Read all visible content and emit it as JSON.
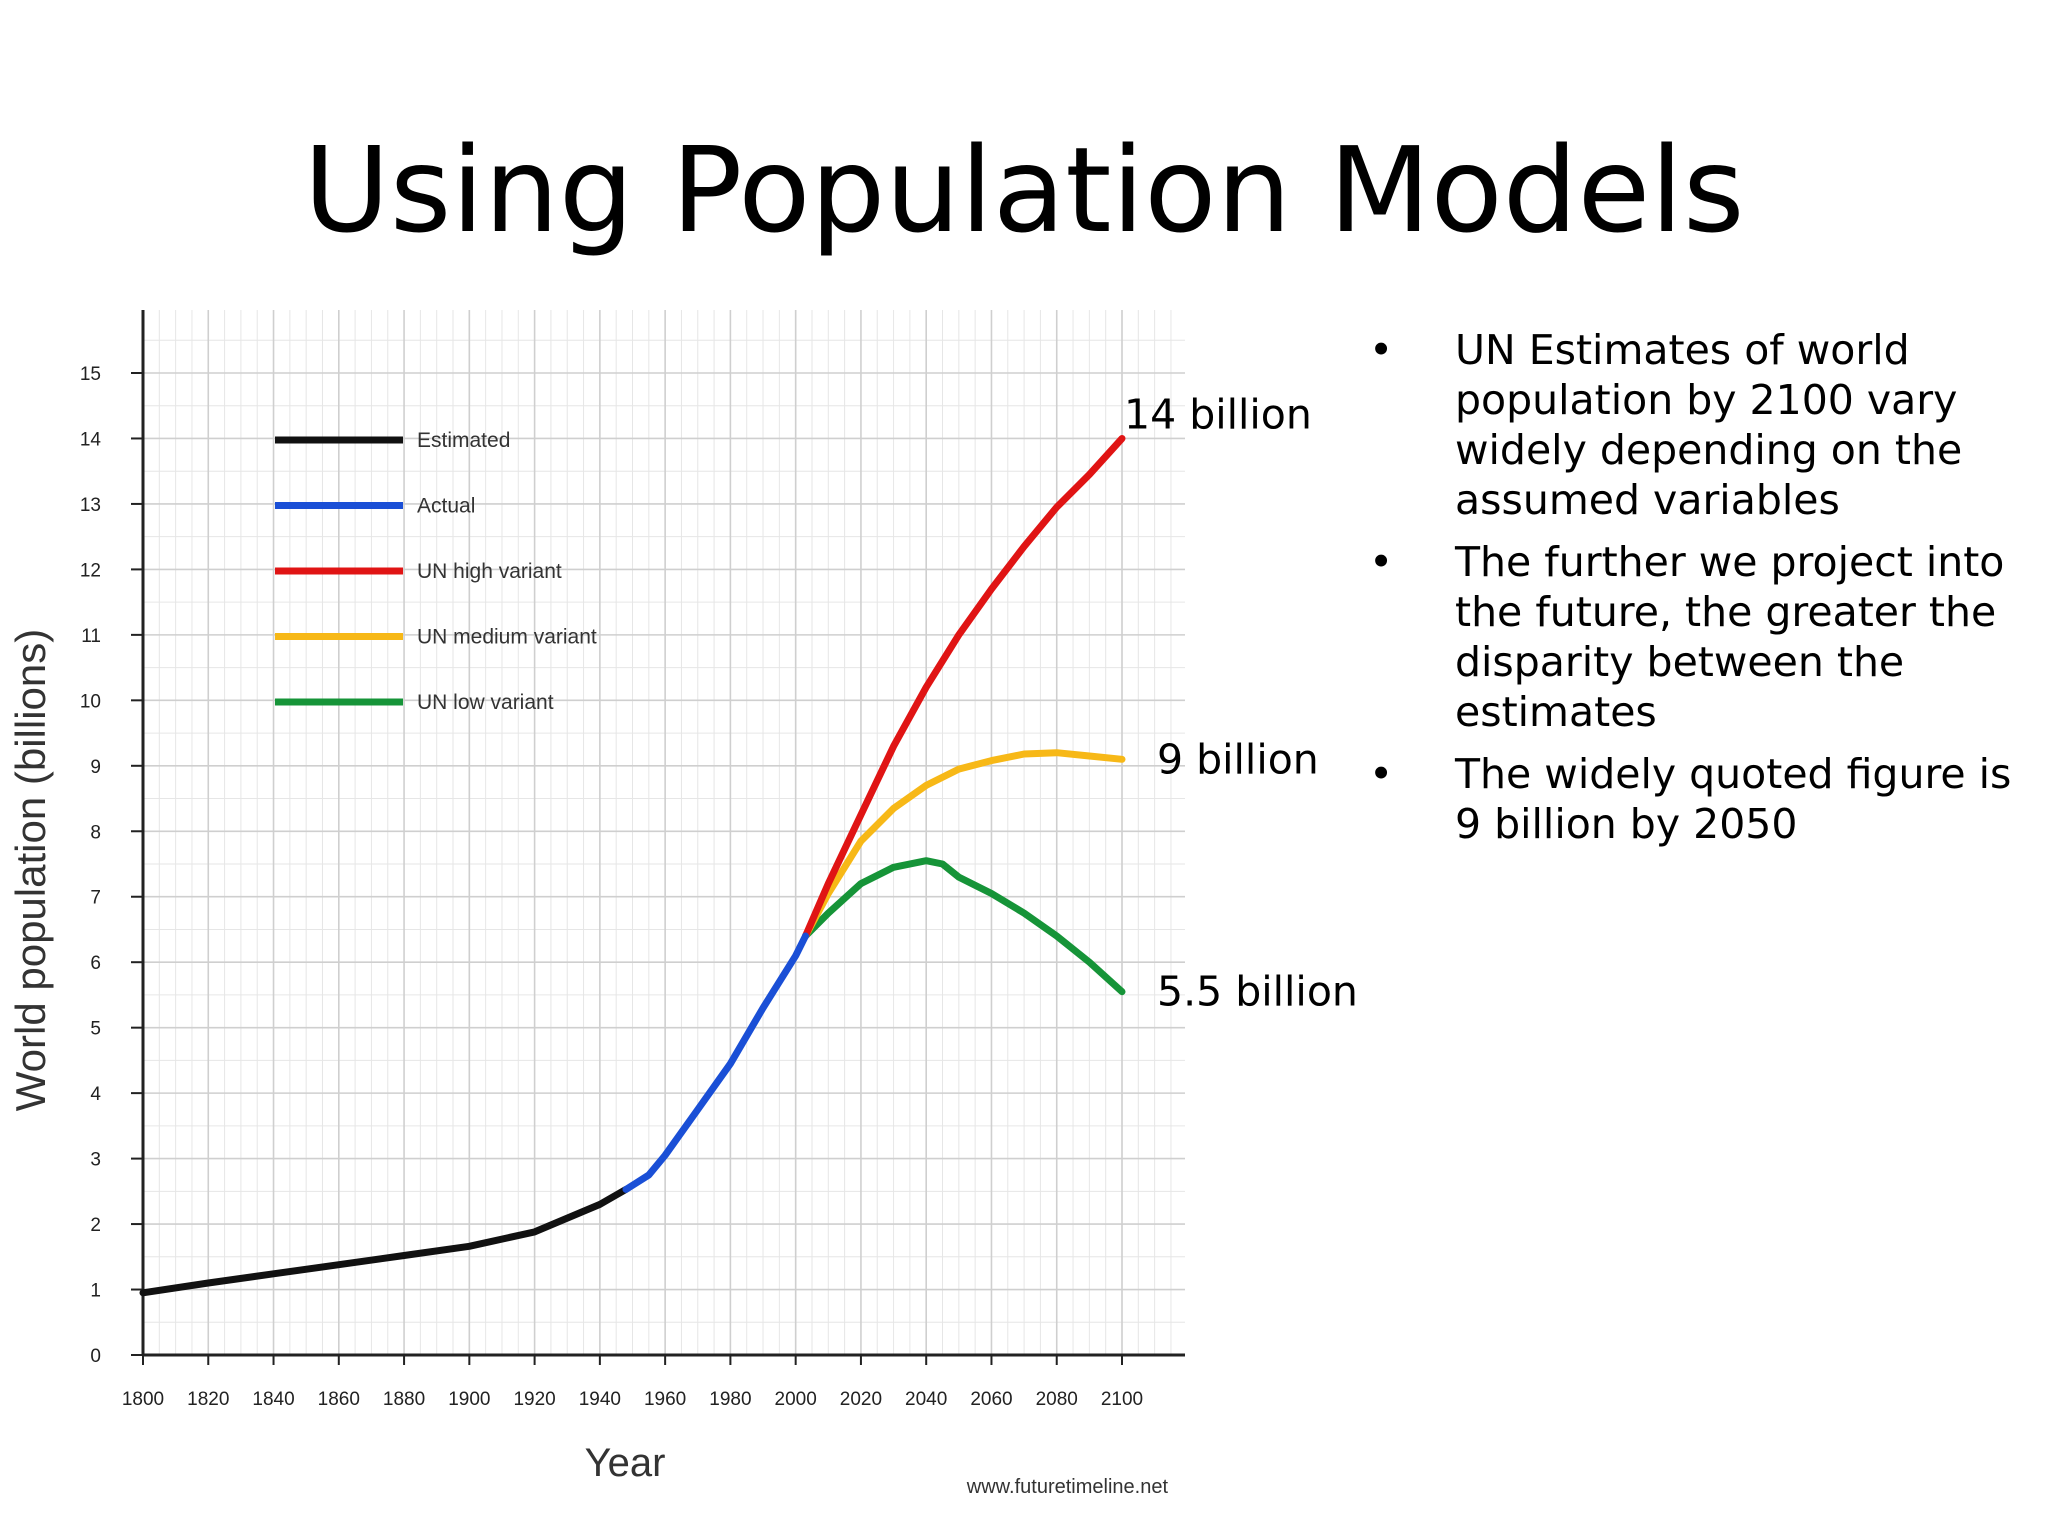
{
  "slide": {
    "title": "Using Population Models",
    "bullets": [
      "UN Estimates of world population by 2100 vary widely depending on the assumed variables",
      "The further we project into the future, the greater the disparity between the estimates",
      "The widely quoted figure is 9 billion by 2050"
    ],
    "bullet_glyph": "•"
  },
  "chart_data": {
    "type": "line",
    "title": "",
    "xlabel": "Year",
    "ylabel": "World population (billions)",
    "xlim": [
      1800,
      2100
    ],
    "ylim": [
      0,
      15
    ],
    "x_ticks": [
      1800,
      1820,
      1840,
      1860,
      1880,
      1900,
      1920,
      1940,
      1960,
      1980,
      2000,
      2020,
      2040,
      2060,
      2080,
      2100
    ],
    "y_ticks": [
      0,
      1,
      2,
      3,
      4,
      5,
      6,
      7,
      8,
      9,
      10,
      11,
      12,
      13,
      14,
      15
    ],
    "grid": true,
    "legend_position": "top-left",
    "series": [
      {
        "name": "Estimated",
        "color": "#111111",
        "points": [
          [
            1800,
            0.95
          ],
          [
            1820,
            1.1
          ],
          [
            1840,
            1.24
          ],
          [
            1860,
            1.38
          ],
          [
            1880,
            1.52
          ],
          [
            1900,
            1.66
          ],
          [
            1920,
            1.88
          ],
          [
            1940,
            2.3
          ],
          [
            1948,
            2.53
          ]
        ]
      },
      {
        "name": "Actual",
        "color": "#1a4fd6",
        "points": [
          [
            1948,
            2.53
          ],
          [
            1955,
            2.75
          ],
          [
            1960,
            3.05
          ],
          [
            1970,
            3.75
          ],
          [
            1980,
            4.45
          ],
          [
            1990,
            5.3
          ],
          [
            2000,
            6.1
          ],
          [
            2003,
            6.4
          ]
        ]
      },
      {
        "name": "UN high variant",
        "color": "#e01414",
        "points": [
          [
            2003,
            6.4
          ],
          [
            2010,
            7.2
          ],
          [
            2020,
            8.25
          ],
          [
            2030,
            9.3
          ],
          [
            2040,
            10.2
          ],
          [
            2050,
            11.0
          ],
          [
            2060,
            11.7
          ],
          [
            2070,
            12.35
          ],
          [
            2080,
            12.95
          ],
          [
            2090,
            13.45
          ],
          [
            2100,
            14.0
          ]
        ]
      },
      {
        "name": "UN medium variant",
        "color": "#f7b817",
        "points": [
          [
            2003,
            6.4
          ],
          [
            2010,
            7.05
          ],
          [
            2020,
            7.85
          ],
          [
            2030,
            8.35
          ],
          [
            2040,
            8.7
          ],
          [
            2050,
            8.95
          ],
          [
            2060,
            9.08
          ],
          [
            2070,
            9.18
          ],
          [
            2080,
            9.2
          ],
          [
            2090,
            9.15
          ],
          [
            2100,
            9.1
          ]
        ]
      },
      {
        "name": "UN low variant",
        "color": "#169438",
        "points": [
          [
            2003,
            6.4
          ],
          [
            2010,
            6.75
          ],
          [
            2020,
            7.2
          ],
          [
            2030,
            7.45
          ],
          [
            2040,
            7.55
          ],
          [
            2045,
            7.5
          ],
          [
            2050,
            7.3
          ],
          [
            2060,
            7.05
          ],
          [
            2070,
            6.75
          ],
          [
            2080,
            6.4
          ],
          [
            2090,
            6.0
          ],
          [
            2100,
            5.55
          ]
        ]
      }
    ],
    "annotations": [
      {
        "text": "14 billion",
        "x": 2100,
        "y": 14.0
      },
      {
        "text": "9 billion",
        "x": 2100,
        "y": 9.1
      },
      {
        "text": "5.5 billion",
        "x": 2100,
        "y": 5.55
      }
    ],
    "source": "www.futuretimeline.net"
  }
}
